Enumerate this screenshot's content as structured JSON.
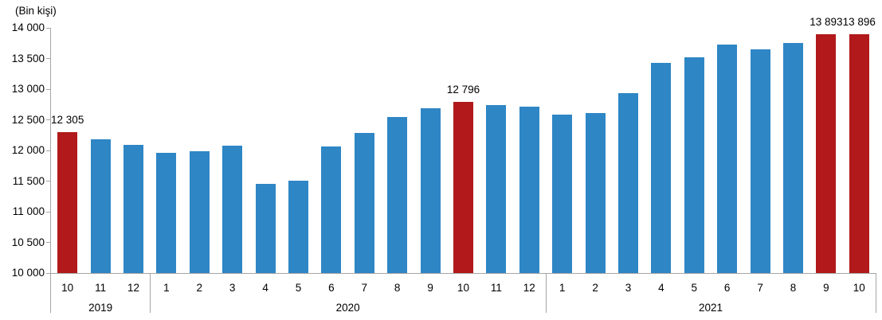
{
  "chart_data": {
    "type": "bar",
    "unit_label": "(Bin kişi)",
    "ylim": [
      10000,
      14000
    ],
    "ytick_step": 500,
    "ytick_labels": [
      "14 000",
      "13 500",
      "13 000",
      "12 500",
      "12 000",
      "11 500",
      "11 000",
      "10 500",
      "10 000"
    ],
    "categories": [
      "10",
      "11",
      "12",
      "1",
      "2",
      "3",
      "4",
      "5",
      "6",
      "7",
      "8",
      "9",
      "10",
      "11",
      "12",
      "1",
      "2",
      "3",
      "4",
      "5",
      "6",
      "7",
      "8",
      "9",
      "10"
    ],
    "values": [
      12305,
      12185,
      12090,
      11955,
      11990,
      12075,
      11460,
      11510,
      12065,
      12290,
      12540,
      12685,
      12796,
      12735,
      12720,
      12585,
      12610,
      12935,
      13425,
      13520,
      13725,
      13650,
      13750,
      13893,
      13896
    ],
    "highlighted_indices": [
      0,
      12,
      23,
      24
    ],
    "data_labels": [
      {
        "index": 0,
        "text": "12 305"
      },
      {
        "index": 12,
        "text": "12 796"
      },
      {
        "index": 23,
        "text": "13 893"
      },
      {
        "index": 24,
        "text": "13 896"
      }
    ],
    "year_groups": [
      {
        "label": "2019",
        "span": 3
      },
      {
        "label": "2020",
        "span": 12
      },
      {
        "label": "2021",
        "span": 10
      }
    ],
    "colors": {
      "bar": "#2e86c5",
      "highlight": "#b1191a",
      "axis": "#a6a6a6",
      "text": "#000000"
    },
    "grid": false,
    "legend": false
  }
}
